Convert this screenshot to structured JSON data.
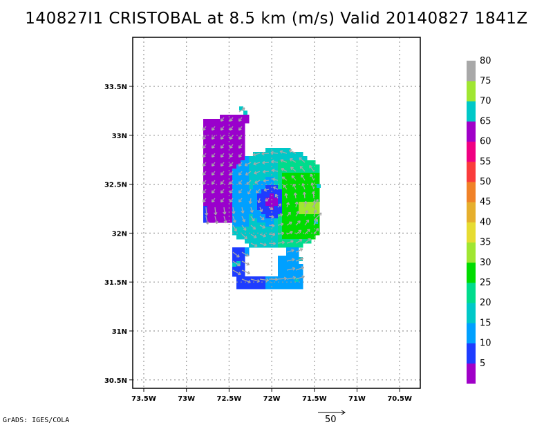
{
  "title": "140827I1 CRISTOBAL at 8.5 km (m/s) Valid 20140827 1841Z",
  "credit": "GrADS: IGES/COLA",
  "vector_scale_label": "50",
  "map": {
    "lat_ticks": [
      "33.5N",
      "33N",
      "32.5N",
      "32N",
      "31.5N",
      "31N",
      "30.5N"
    ],
    "lat_values": [
      33.5,
      33.0,
      32.5,
      32.0,
      31.5,
      31.0,
      30.5
    ],
    "lon_ticks": [
      "73.5W",
      "73W",
      "72.5W",
      "72W",
      "71.5W",
      "71W",
      "70.5W"
    ],
    "lon_values": [
      -73.5,
      -73.0,
      -72.5,
      -72.0,
      -71.5,
      -71.0,
      -70.5
    ],
    "lon_range": [
      -73.6,
      -70.2
    ],
    "lat_range": [
      30.4,
      33.95
    ],
    "grid": true
  },
  "colorbar": {
    "labels": [
      "5",
      "10",
      "15",
      "20",
      "25",
      "30",
      "35",
      "40",
      "45",
      "50",
      "55",
      "60",
      "65",
      "70",
      "75",
      "80"
    ],
    "colors": [
      "#a000c8",
      "#1e3cff",
      "#00a0ff",
      "#00c8c8",
      "#00dc8c",
      "#00dc00",
      "#a0e632",
      "#e6dc32",
      "#e6af2d",
      "#f08228",
      "#fa3c3c",
      "#f00082",
      "#a000c8",
      "#00c8c8",
      "#a0e632",
      "#a8a8a8"
    ]
  },
  "legend_colors_note": "",
  "speed_colors": {
    "purple": "#9a00cc",
    "blue": "#1e3cff",
    "lightblue": "#00a0ff",
    "cyan": "#00c8c8",
    "teal": "#00dc8c",
    "green": "#00dc00",
    "lime": "#a0e632",
    "arrow": "#a8a8a8"
  }
}
